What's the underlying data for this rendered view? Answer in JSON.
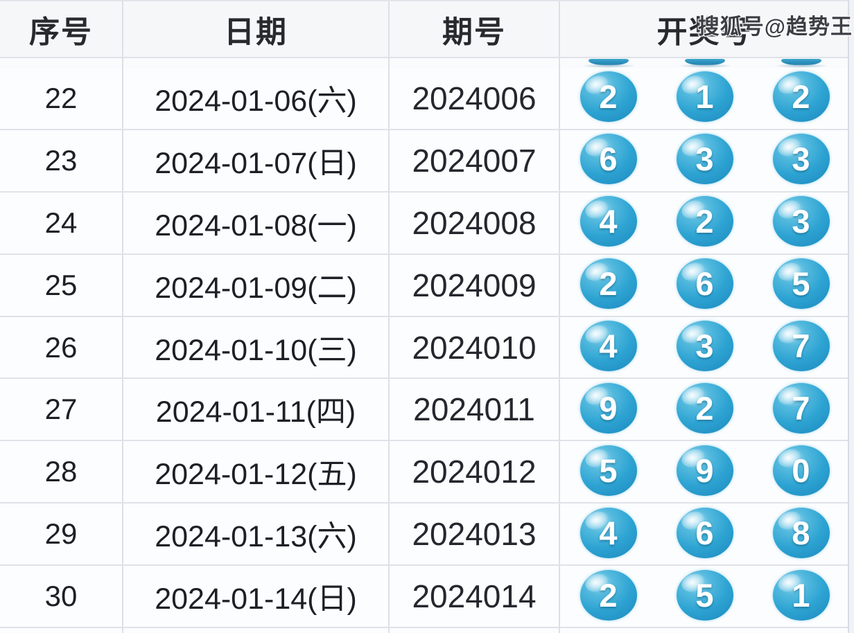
{
  "watermark": "搜狐号@趋势王",
  "table": {
    "columns": [
      "序号",
      "日期",
      "期号",
      "开奖号"
    ],
    "rows": [
      {
        "seq": "22",
        "date": "2024-01-06(六)",
        "period": "2024006",
        "balls": [
          "2",
          "1",
          "2"
        ]
      },
      {
        "seq": "23",
        "date": "2024-01-07(日)",
        "period": "2024007",
        "balls": [
          "6",
          "3",
          "3"
        ]
      },
      {
        "seq": "24",
        "date": "2024-01-08(一)",
        "period": "2024008",
        "balls": [
          "4",
          "2",
          "3"
        ]
      },
      {
        "seq": "25",
        "date": "2024-01-09(二)",
        "period": "2024009",
        "balls": [
          "2",
          "6",
          "5"
        ]
      },
      {
        "seq": "26",
        "date": "2024-01-10(三)",
        "period": "2024010",
        "balls": [
          "4",
          "3",
          "7"
        ]
      },
      {
        "seq": "27",
        "date": "2024-01-11(四)",
        "period": "2024011",
        "balls": [
          "9",
          "2",
          "7"
        ]
      },
      {
        "seq": "28",
        "date": "2024-01-12(五)",
        "period": "2024012",
        "balls": [
          "5",
          "9",
          "0"
        ]
      },
      {
        "seq": "29",
        "date": "2024-01-13(六)",
        "period": "2024013",
        "balls": [
          "4",
          "6",
          "8"
        ]
      },
      {
        "seq": "30",
        "date": "2024-01-14(日)",
        "period": "2024014",
        "balls": [
          "2",
          "5",
          "1"
        ]
      }
    ]
  },
  "colors": {
    "ball_main": "#2ea4d3",
    "ball_dark": "#1c7fae",
    "ball_highlight": "#a6def2",
    "ball_text": "#ffffff",
    "header_text": "#28292d",
    "body_text": "#1e1f25",
    "grid_line": "#dfe2e8",
    "row_background": "#fcfdfe",
    "header_background": "#f6f7f9",
    "watermark_text": "#3d3e44"
  }
}
